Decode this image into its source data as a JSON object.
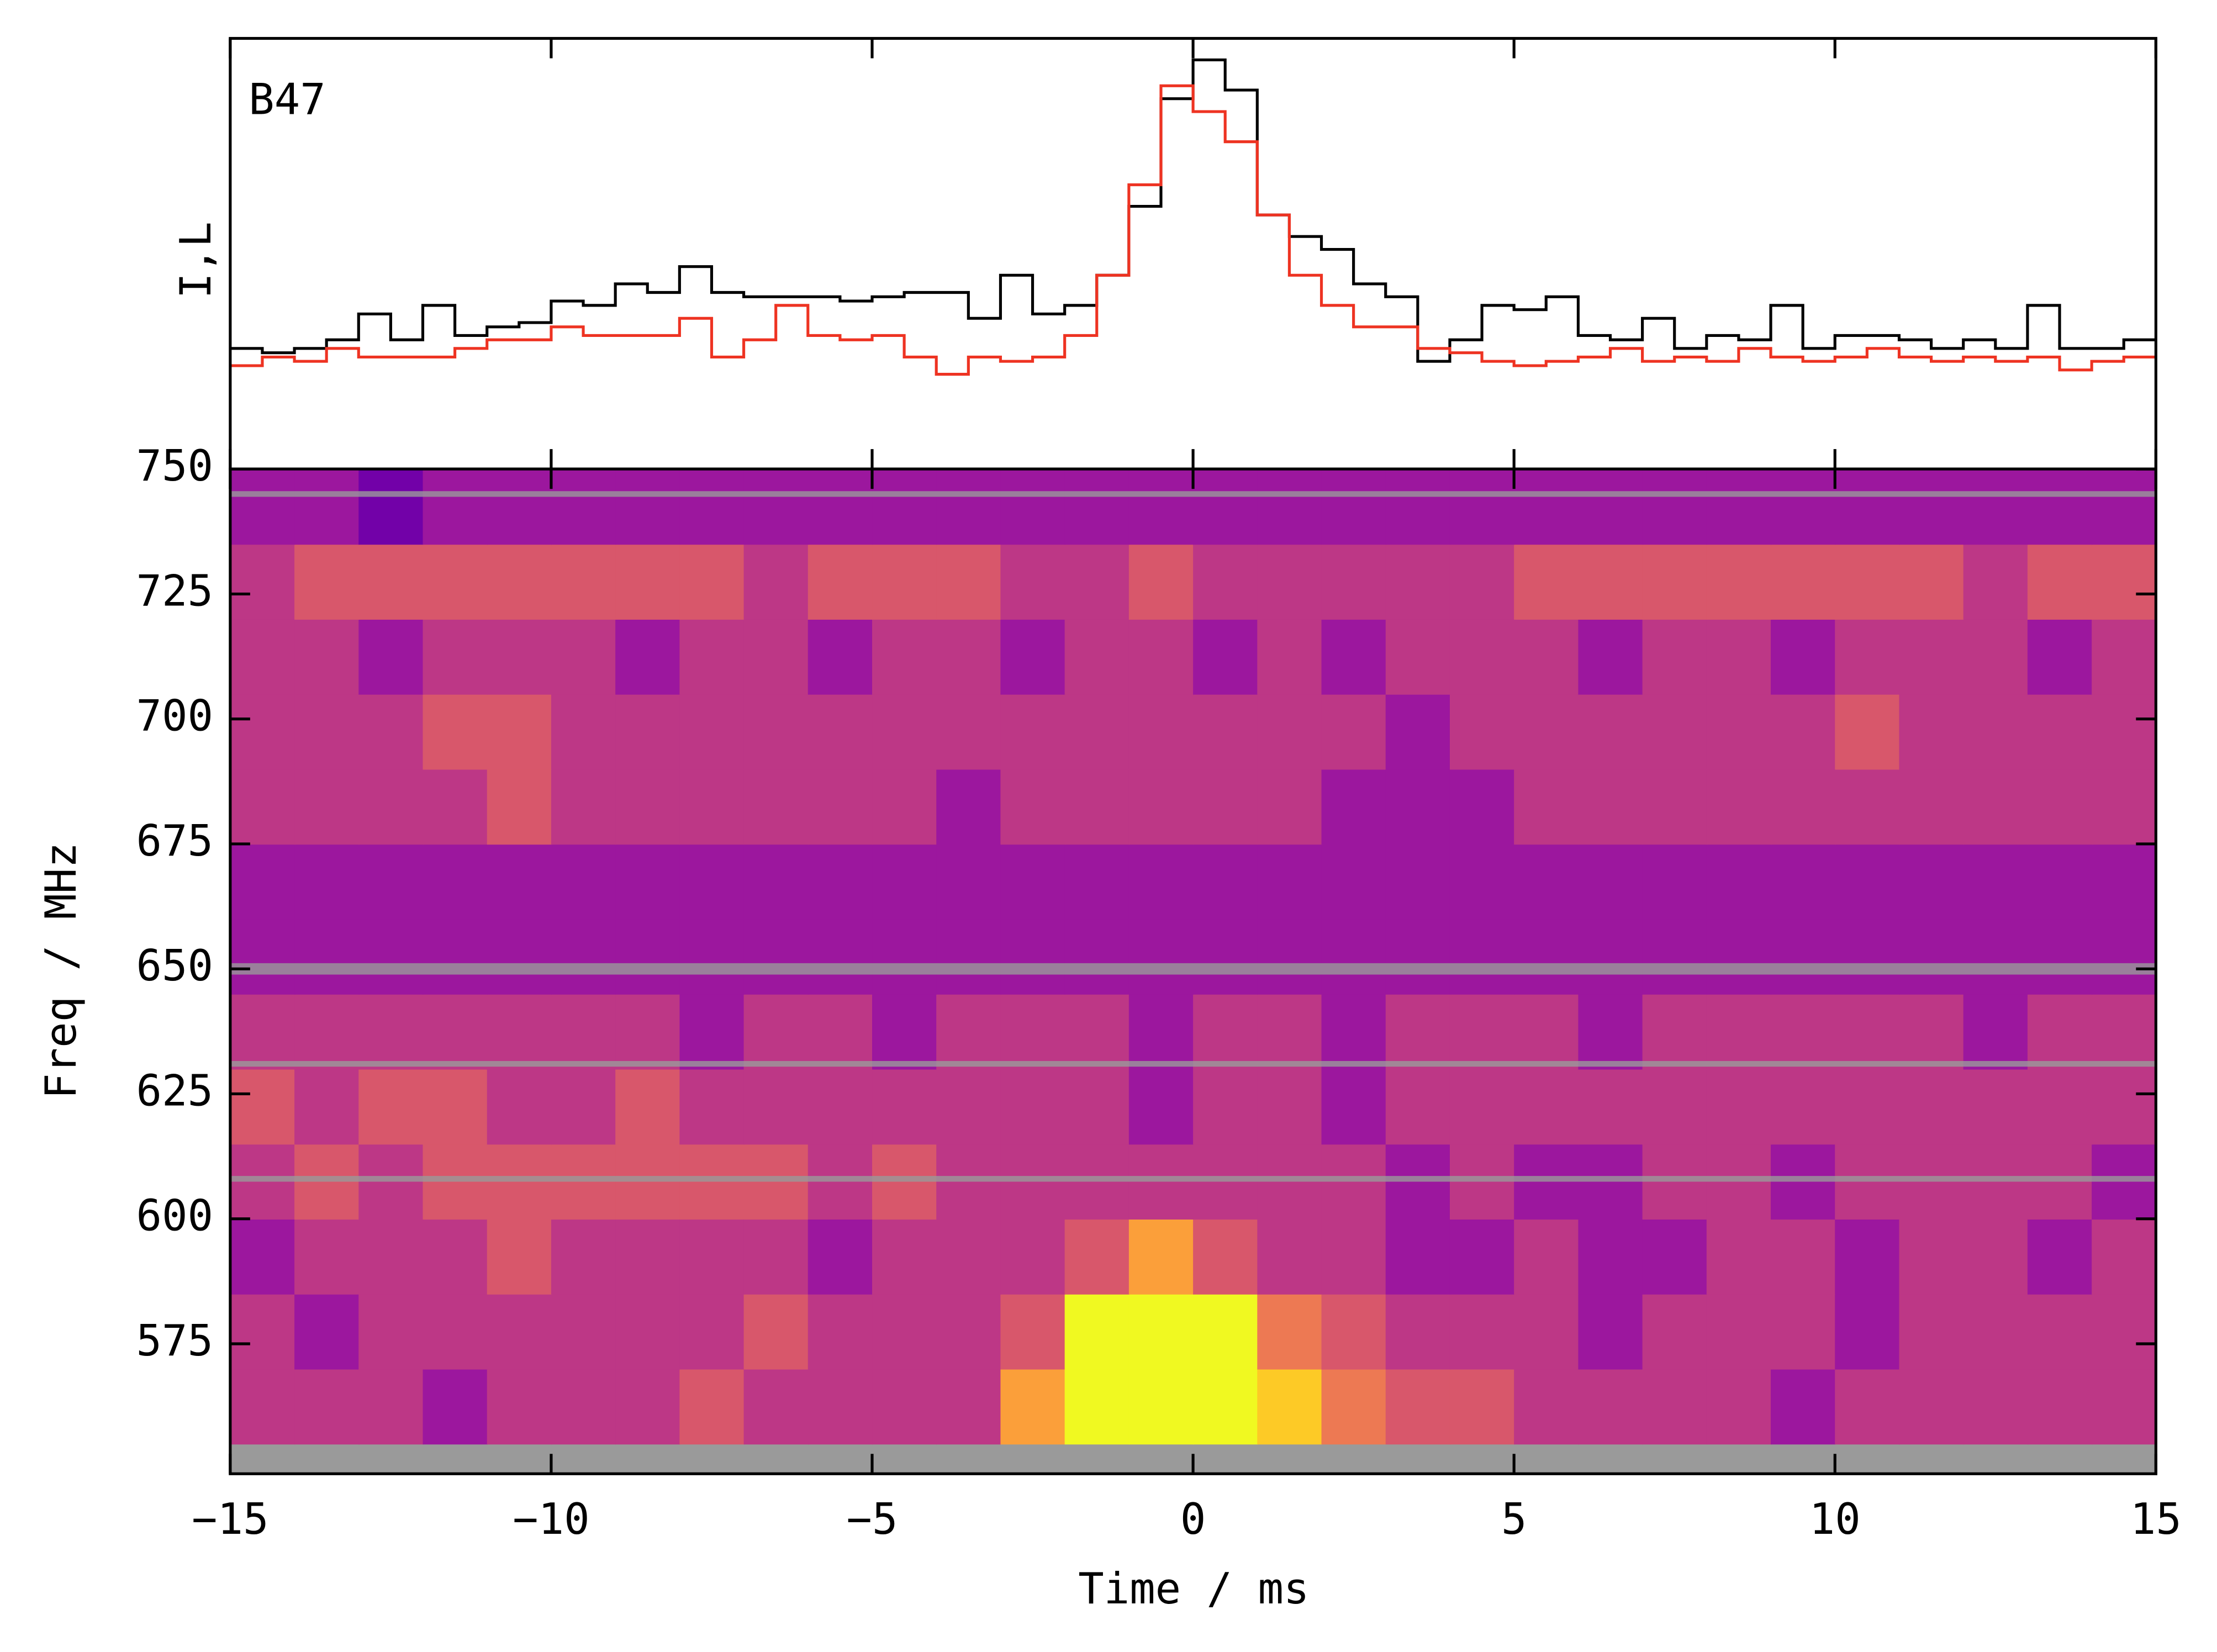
{
  "chart_data": [
    {
      "type": "step",
      "ylabel": "I,L",
      "annotation": "B47",
      "xlim": [
        -15,
        15
      ],
      "ylim": [
        0,
        1
      ],
      "x": [
        -15,
        -14.5,
        -14,
        -13.5,
        -13,
        -12.5,
        -12,
        -11.5,
        -11,
        -10.5,
        -10,
        -9.5,
        -9,
        -8.5,
        -8,
        -7.5,
        -7,
        -6.5,
        -6,
        -5.5,
        -5,
        -4.5,
        -4,
        -3.5,
        -3,
        -2.5,
        -2,
        -1.5,
        -1,
        -0.5,
        0,
        0.5,
        1,
        1.5,
        2,
        2.5,
        3,
        3.5,
        4,
        4.5,
        5,
        5.5,
        6,
        6.5,
        7,
        7.5,
        8,
        8.5,
        9,
        9.5,
        10,
        10.5,
        11,
        11.5,
        12,
        12.5,
        13,
        13.5,
        14,
        14.5
      ],
      "series": [
        {
          "color": "#000000",
          "values": [
            0.28,
            0.27,
            0.28,
            0.3,
            0.36,
            0.3,
            0.38,
            0.31,
            0.33,
            0.34,
            0.39,
            0.38,
            0.43,
            0.41,
            0.47,
            0.41,
            0.4,
            0.4,
            0.4,
            0.39,
            0.4,
            0.41,
            0.41,
            0.35,
            0.45,
            0.36,
            0.38,
            0.45,
            0.61,
            0.86,
            0.95,
            0.88,
            0.59,
            0.54,
            0.51,
            0.43,
            0.4,
            0.25,
            0.3,
            0.38,
            0.37,
            0.4,
            0.31,
            0.3,
            0.35,
            0.28,
            0.31,
            0.3,
            0.38,
            0.28,
            0.31,
            0.31,
            0.3,
            0.28,
            0.3,
            0.28,
            0.38,
            0.28,
            0.28,
            0.3
          ]
        },
        {
          "color": "#ee3322",
          "values": [
            0.24,
            0.26,
            0.25,
            0.28,
            0.26,
            0.26,
            0.26,
            0.28,
            0.3,
            0.3,
            0.33,
            0.31,
            0.31,
            0.31,
            0.35,
            0.26,
            0.3,
            0.38,
            0.31,
            0.3,
            0.31,
            0.26,
            0.22,
            0.26,
            0.25,
            0.26,
            0.31,
            0.45,
            0.66,
            0.89,
            0.83,
            0.76,
            0.59,
            0.45,
            0.38,
            0.33,
            0.33,
            0.28,
            0.27,
            0.25,
            0.24,
            0.25,
            0.26,
            0.28,
            0.25,
            0.26,
            0.25,
            0.28,
            0.26,
            0.25,
            0.26,
            0.28,
            0.26,
            0.25,
            0.26,
            0.25,
            0.26,
            0.23,
            0.25,
            0.26
          ]
        }
      ]
    },
    {
      "type": "heatmap",
      "xlabel": "Time / ms",
      "ylabel": "Freq / MHz",
      "colormap": "plasma",
      "mask_color": "#9a9a9a",
      "xlim": [
        -15,
        15
      ],
      "xticks": [
        {
          "value": -15,
          "label": "−15"
        },
        {
          "value": -10,
          "label": "−10"
        },
        {
          "value": -5,
          "label": "−5"
        },
        0,
        5,
        10,
        15
      ],
      "ylim": [
        549,
        750
      ],
      "yticks": [
        575,
        600,
        625,
        650,
        675,
        700,
        725,
        750
      ],
      "time_bins": [
        -15,
        -14,
        -13,
        -12,
        -11,
        -10,
        -9,
        -8,
        -7,
        -6,
        -5,
        -4,
        -3,
        -2,
        -1,
        0,
        1,
        2,
        3,
        4,
        5,
        6,
        7,
        8,
        9,
        10,
        11,
        12,
        13,
        14,
        15
      ],
      "freq_bins": [
        555,
        570,
        585,
        600,
        615,
        630,
        645,
        660,
        675,
        690,
        705,
        720,
        735,
        750
      ],
      "masked_freqs": [
        745,
        650,
        631,
        608
      ],
      "z": [
        [
          0.45,
          0.4,
          0.42,
          0.38,
          0.45,
          0.4,
          0.42,
          0.5,
          0.45,
          0.48,
          0.42,
          0.45,
          0.75,
          0.95,
          1,
          1,
          0.9,
          0.7,
          0.55,
          0.5,
          0.45,
          0.42,
          0.4,
          0.45,
          0.38,
          0.42,
          0.4,
          0.45,
          0.4,
          0.42
        ],
        [
          0.4,
          0.38,
          0.42,
          0.45,
          0.4,
          0.48,
          0.42,
          0.45,
          0.5,
          0.4,
          0.42,
          0.45,
          0.5,
          1,
          1,
          1,
          0.7,
          0.5,
          0.45,
          0.4,
          0.42,
          0.38,
          0.4,
          0.42,
          0.4,
          0.38,
          0.42,
          0.4,
          0.45,
          0.4
        ],
        [
          0.38,
          0.42,
          0.4,
          0.45,
          0.5,
          0.42,
          0.45,
          0.4,
          0.42,
          0.38,
          0.4,
          0.42,
          0.45,
          0.6,
          0.8,
          0.55,
          0.45,
          0.4,
          0.38,
          0.35,
          0.4,
          0.38,
          0.35,
          0.4,
          0.42,
          0.38,
          0.4,
          0.42,
          0.38,
          0.4
        ],
        [
          0.45,
          0.5,
          0.48,
          0.5,
          0.55,
          0.5,
          0.52,
          0.55,
          0.5,
          0.48,
          0.5,
          0.45,
          0.48,
          0.45,
          0.42,
          0.4,
          0.45,
          0.42,
          0.38,
          0.4,
          0.35,
          0.38,
          0.4,
          0.42,
          0.38,
          0.4,
          0.42,
          0.45,
          0.4,
          0.38
        ],
        [
          0.5,
          0.48,
          0.52,
          0.5,
          0.48,
          0.45,
          0.5,
          0.48,
          0.45,
          0.42,
          0.45,
          0.4,
          0.42,
          0.4,
          0.38,
          0.42,
          0.4,
          0.38,
          0.4,
          0.42,
          0.4,
          0.45,
          0.42,
          0.45,
          0.48,
          0.45,
          0.42,
          0.4,
          0.42,
          0.45
        ],
        [
          0.42,
          0.4,
          0.45,
          0.42,
          0.45,
          0.4,
          0.42,
          0.38,
          0.4,
          0.42,
          0.38,
          0.4,
          0.42,
          0.4,
          0.38,
          0.4,
          0.42,
          0.38,
          0.4,
          0.42,
          0.4,
          0.38,
          0.42,
          0.4,
          0.45,
          0.42,
          0.4,
          0.38,
          0.4,
          0.42
        ],
        [
          0.35,
          0.32,
          0.35,
          0.38,
          0.3,
          0.35,
          0.32,
          0.35,
          0.3,
          0.32,
          0.35,
          0.3,
          0.32,
          0.35,
          0.38,
          0.32,
          0.35,
          0.3,
          0.32,
          0.35,
          0.3,
          0.32,
          0.35,
          0.38,
          0.32,
          0.3,
          0.35,
          0.32,
          0.35,
          0.3
        ],
        [
          0.3,
          0.35,
          0.32,
          0.3,
          0.35,
          0.32,
          0.3,
          0.28,
          0.32,
          0.35,
          0.3,
          0.32,
          0.35,
          0.3,
          0.32,
          0.3,
          0.35,
          0.32,
          0.3,
          0.28,
          0.3,
          0.32,
          0.3,
          0.35,
          0.32,
          0.3,
          0.35,
          0.32,
          0.3,
          0.32
        ],
        [
          0.4,
          0.42,
          0.45,
          0.48,
          0.5,
          0.45,
          0.42,
          0.4,
          0.45,
          0.42,
          0.4,
          0.38,
          0.4,
          0.42,
          0.45,
          0.42,
          0.4,
          0.38,
          0.35,
          0.38,
          0.4,
          0.42,
          0.45,
          0.48,
          0.45,
          0.42,
          0.4,
          0.42,
          0.45,
          0.42
        ],
        [
          0.42,
          0.45,
          0.48,
          0.5,
          0.52,
          0.48,
          0.45,
          0.42,
          0.45,
          0.4,
          0.42,
          0.45,
          0.42,
          0.4,
          0.45,
          0.48,
          0.42,
          0.4,
          0.38,
          0.4,
          0.42,
          0.4,
          0.42,
          0.45,
          0.48,
          0.5,
          0.45,
          0.42,
          0.4,
          0.42
        ],
        [
          0.4,
          0.42,
          0.38,
          0.4,
          0.42,
          0.4,
          0.38,
          0.42,
          0.4,
          0.38,
          0.4,
          0.42,
          0.38,
          0.4,
          0.42,
          0.38,
          0.4,
          0.38,
          0.4,
          0.42,
          0.4,
          0.38,
          0.42,
          0.4,
          0.38,
          0.4,
          0.42,
          0.4,
          0.38,
          0.4
        ],
        [
          0.48,
          0.5,
          0.55,
          0.52,
          0.5,
          0.55,
          0.52,
          0.5,
          0.48,
          0.5,
          0.52,
          0.5,
          0.48,
          0.45,
          0.5,
          0.48,
          0.45,
          0.42,
          0.45,
          0.48,
          0.5,
          0.52,
          0.55,
          0.52,
          0.5,
          0.55,
          0.5,
          0.48,
          0.5,
          0.52
        ],
        [
          0.3,
          0.28,
          0.25,
          0.3,
          0.28,
          0.32,
          0.3,
          0.28,
          0.3,
          0.32,
          0.28,
          0.3,
          0.32,
          0.3,
          0.28,
          0.3,
          0.32,
          0.3,
          0.28,
          0.3,
          0.32,
          0.35,
          0.3,
          0.32,
          0.3,
          0.28,
          0.3,
          0.32,
          0.3,
          0.28
        ]
      ]
    }
  ]
}
